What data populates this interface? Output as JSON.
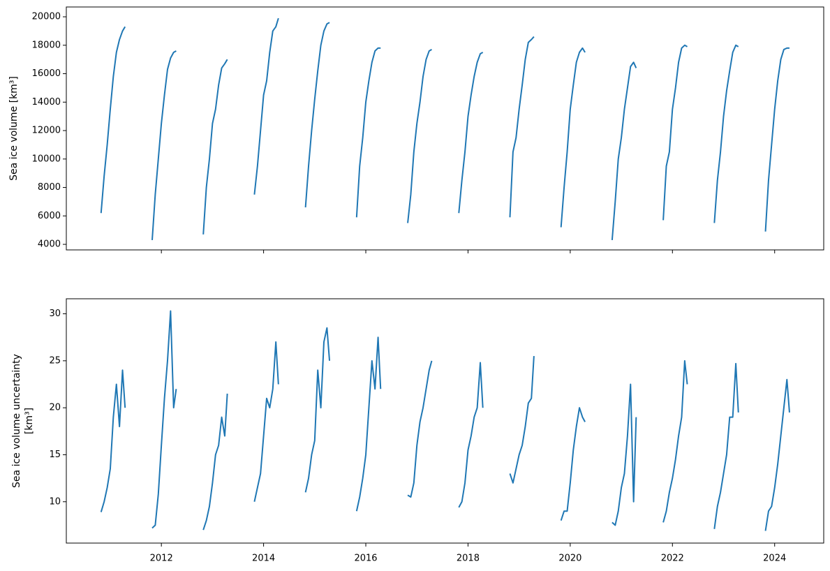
{
  "chart_data": [
    {
      "type": "line",
      "ylabel": "Sea ice volume [km³]",
      "x": [
        2010.82,
        2010.88,
        2010.94,
        2011.0,
        2011.06,
        2011.12,
        2011.18,
        2011.24,
        2011.29,
        null,
        2011.82,
        2011.88,
        2011.94,
        2012.0,
        2012.06,
        2012.12,
        2012.18,
        2012.24,
        2012.29,
        null,
        2012.82,
        2012.88,
        2012.94,
        2013.0,
        2013.06,
        2013.12,
        2013.18,
        2013.24,
        2013.29,
        null,
        2013.82,
        2013.88,
        2013.94,
        2014.0,
        2014.06,
        2014.12,
        2014.18,
        2014.24,
        2014.29,
        null,
        2014.82,
        2014.88,
        2014.94,
        2015.0,
        2015.06,
        2015.12,
        2015.18,
        2015.24,
        2015.29,
        null,
        2015.82,
        2015.88,
        2015.94,
        2016.0,
        2016.06,
        2016.12,
        2016.18,
        2016.24,
        2016.29,
        null,
        2016.82,
        2016.88,
        2016.94,
        2017.0,
        2017.06,
        2017.12,
        2017.18,
        2017.24,
        2017.29,
        null,
        2017.82,
        2017.88,
        2017.94,
        2018.0,
        2018.06,
        2018.12,
        2018.18,
        2018.24,
        2018.29,
        null,
        2018.82,
        2018.88,
        2018.94,
        2019.0,
        2019.06,
        2019.12,
        2019.18,
        2019.24,
        2019.29,
        null,
        2019.82,
        2019.88,
        2019.94,
        2020.0,
        2020.06,
        2020.12,
        2020.18,
        2020.24,
        2020.29,
        null,
        2020.82,
        2020.88,
        2020.94,
        2021.0,
        2021.06,
        2021.12,
        2021.18,
        2021.24,
        2021.29,
        null,
        2021.82,
        2021.88,
        2021.94,
        2022.0,
        2022.06,
        2022.12,
        2022.18,
        2022.24,
        2022.29,
        null,
        2022.82,
        2022.88,
        2022.94,
        2023.0,
        2023.06,
        2023.12,
        2023.18,
        2023.24,
        2023.29,
        null,
        2023.82,
        2023.88,
        2023.94,
        2024.0,
        2024.06,
        2024.12,
        2024.18,
        2024.24,
        2024.29
      ],
      "series": [
        {
          "color": "#1f77b4",
          "values": [
            6200,
            8800,
            11000,
            13500,
            15800,
            17500,
            18400,
            19000,
            19300,
            null,
            4300,
            7500,
            10000,
            12500,
            14500,
            16300,
            17100,
            17500,
            17600,
            null,
            4700,
            8000,
            10000,
            12500,
            13500,
            15200,
            16400,
            16700,
            17000,
            null,
            7500,
            9500,
            12000,
            14500,
            15500,
            17500,
            19000,
            19300,
            19900,
            null,
            6600,
            9500,
            12000,
            14200,
            16200,
            18000,
            19000,
            19500,
            19600,
            null,
            5900,
            9500,
            11500,
            14000,
            15500,
            16800,
            17600,
            17800,
            17800,
            null,
            5500,
            7500,
            10500,
            12500,
            14000,
            15800,
            17000,
            17600,
            17700,
            null,
            6200,
            8500,
            10500,
            13000,
            14500,
            15800,
            16800,
            17400,
            17500,
            null,
            5900,
            10500,
            11500,
            13500,
            15200,
            17000,
            18200,
            18400,
            18600,
            null,
            5200,
            8000,
            10500,
            13500,
            15200,
            16800,
            17500,
            17800,
            17500,
            null,
            4300,
            7000,
            10000,
            11500,
            13500,
            15000,
            16500,
            16800,
            16400,
            null,
            5700,
            9500,
            10500,
            13500,
            15000,
            16800,
            17800,
            18000,
            17900,
            null,
            5500,
            8500,
            10500,
            13000,
            14800,
            16200,
            17500,
            18000,
            17900,
            null,
            4900,
            8500,
            11000,
            13500,
            15500,
            17000,
            17700,
            17800,
            17800
          ]
        }
      ],
      "xlim": [
        2010.14,
        2024.96
      ],
      "xticks": [
        2012,
        2014,
        2016,
        2018,
        2020,
        2022,
        2024
      ],
      "ylim": [
        3610,
        20690
      ],
      "yticks": [
        4000,
        6000,
        8000,
        10000,
        12000,
        14000,
        16000,
        18000,
        20000
      ]
    },
    {
      "type": "line",
      "ylabel": [
        "Sea ice volume uncertainty",
        "[km³]"
      ],
      "x": [
        2010.82,
        2010.88,
        2010.94,
        2011.0,
        2011.06,
        2011.12,
        2011.18,
        2011.24,
        2011.29,
        null,
        2011.82,
        2011.88,
        2011.94,
        2012.0,
        2012.06,
        2012.12,
        2012.18,
        2012.24,
        2012.29,
        null,
        2012.82,
        2012.88,
        2012.94,
        2013.0,
        2013.06,
        2013.12,
        2013.18,
        2013.24,
        2013.29,
        null,
        2013.82,
        2013.88,
        2013.94,
        2014.0,
        2014.06,
        2014.12,
        2014.18,
        2014.24,
        2014.29,
        null,
        2014.82,
        2014.88,
        2014.94,
        2015.0,
        2015.06,
        2015.12,
        2015.18,
        2015.24,
        2015.29,
        null,
        2015.82,
        2015.88,
        2015.94,
        2016.0,
        2016.06,
        2016.12,
        2016.18,
        2016.24,
        2016.29,
        null,
        2016.82,
        2016.88,
        2016.94,
        2017.0,
        2017.06,
        2017.12,
        2017.18,
        2017.24,
        2017.29,
        null,
        2017.82,
        2017.88,
        2017.94,
        2018.0,
        2018.06,
        2018.12,
        2018.18,
        2018.24,
        2018.29,
        null,
        2018.82,
        2018.88,
        2018.94,
        2019.0,
        2019.06,
        2019.12,
        2019.18,
        2019.24,
        2019.29,
        null,
        2019.82,
        2019.88,
        2019.94,
        2020.0,
        2020.06,
        2020.12,
        2020.18,
        2020.24,
        2020.29,
        null,
        2020.82,
        2020.88,
        2020.94,
        2021.0,
        2021.06,
        2021.12,
        2021.18,
        2021.24,
        2021.29,
        null,
        2021.82,
        2021.88,
        2021.94,
        2022.0,
        2022.06,
        2022.12,
        2022.18,
        2022.24,
        2022.29,
        null,
        2022.82,
        2022.88,
        2022.94,
        2023.0,
        2023.06,
        2023.12,
        2023.18,
        2023.24,
        2023.29,
        null,
        2023.82,
        2023.88,
        2023.94,
        2024.0,
        2024.06,
        2024.12,
        2024.18,
        2024.24,
        2024.29
      ],
      "series": [
        {
          "color": "#1f77b4",
          "values": [
            8.9,
            10,
            11.5,
            13.5,
            19,
            22.5,
            18,
            24,
            20,
            null,
            7.2,
            7.5,
            10.8,
            16,
            21,
            25,
            30.3,
            20,
            22,
            null,
            7,
            8,
            9.5,
            12,
            15,
            16,
            19,
            17,
            21.5,
            null,
            10,
            11.5,
            13,
            17,
            21,
            20,
            22,
            27,
            22.5,
            null,
            11,
            12.5,
            15,
            16.5,
            24,
            20,
            27,
            28.5,
            25,
            null,
            9,
            10.5,
            12.5,
            15,
            20,
            25,
            22,
            27.5,
            22,
            null,
            10.7,
            10.5,
            12,
            16,
            18.5,
            20,
            22,
            24,
            25,
            null,
            9.4,
            10,
            12,
            15.5,
            17,
            19,
            20,
            24.8,
            20,
            null,
            13,
            12,
            13.5,
            15,
            16,
            18,
            20.5,
            21,
            25.5,
            null,
            8,
            9,
            9,
            12,
            15.5,
            18,
            20,
            19,
            18.5,
            null,
            7.8,
            7.5,
            9,
            11.5,
            13,
            17,
            22.5,
            10,
            19,
            null,
            7.8,
            9,
            11,
            12.5,
            14.5,
            17,
            19,
            25,
            22.5,
            null,
            7.1,
            9.5,
            11,
            13,
            15,
            19,
            19,
            24.7,
            19.5,
            null,
            6.9,
            9,
            9.5,
            11.5,
            14,
            17,
            20,
            23,
            19.5
          ]
        }
      ],
      "xlim": [
        2010.14,
        2024.96
      ],
      "xticks": [
        2012,
        2014,
        2016,
        2018,
        2020,
        2022,
        2024
      ],
      "ylim": [
        5.6,
        31.6
      ],
      "yticks": [
        10,
        15,
        20,
        25,
        30
      ]
    }
  ]
}
